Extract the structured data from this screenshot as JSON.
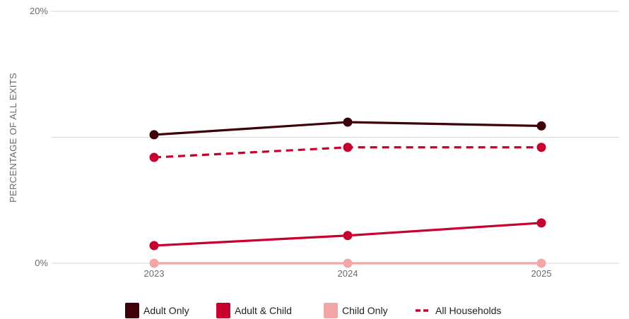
{
  "chart_data": {
    "type": "line",
    "ylabel": "PERCENTAGE OF ALL EXITS",
    "xlabel": "",
    "x": [
      "2023",
      "2024",
      "2025"
    ],
    "ylim": [
      0,
      20
    ],
    "y_ticks": [
      {
        "value": 0,
        "label": "0%"
      },
      {
        "value": 10,
        "label": ""
      },
      {
        "value": 20,
        "label": "20%"
      }
    ],
    "grid": true,
    "legend_position": "bottom",
    "series": [
      {
        "name": "Adult Only",
        "values": [
          10.2,
          11.2,
          10.9
        ],
        "color": "#3d0008",
        "dashed": false
      },
      {
        "name": "Adult & Child",
        "values": [
          1.4,
          2.2,
          3.2
        ],
        "color": "#c8002f",
        "dashed": false
      },
      {
        "name": "Child Only",
        "values": [
          0.0,
          0.0,
          0.0
        ],
        "color": "#f4a6a6",
        "dashed": false
      },
      {
        "name": "All Households",
        "values": [
          8.4,
          9.2,
          9.2
        ],
        "color": "#c8002f",
        "dashed": true
      }
    ]
  }
}
